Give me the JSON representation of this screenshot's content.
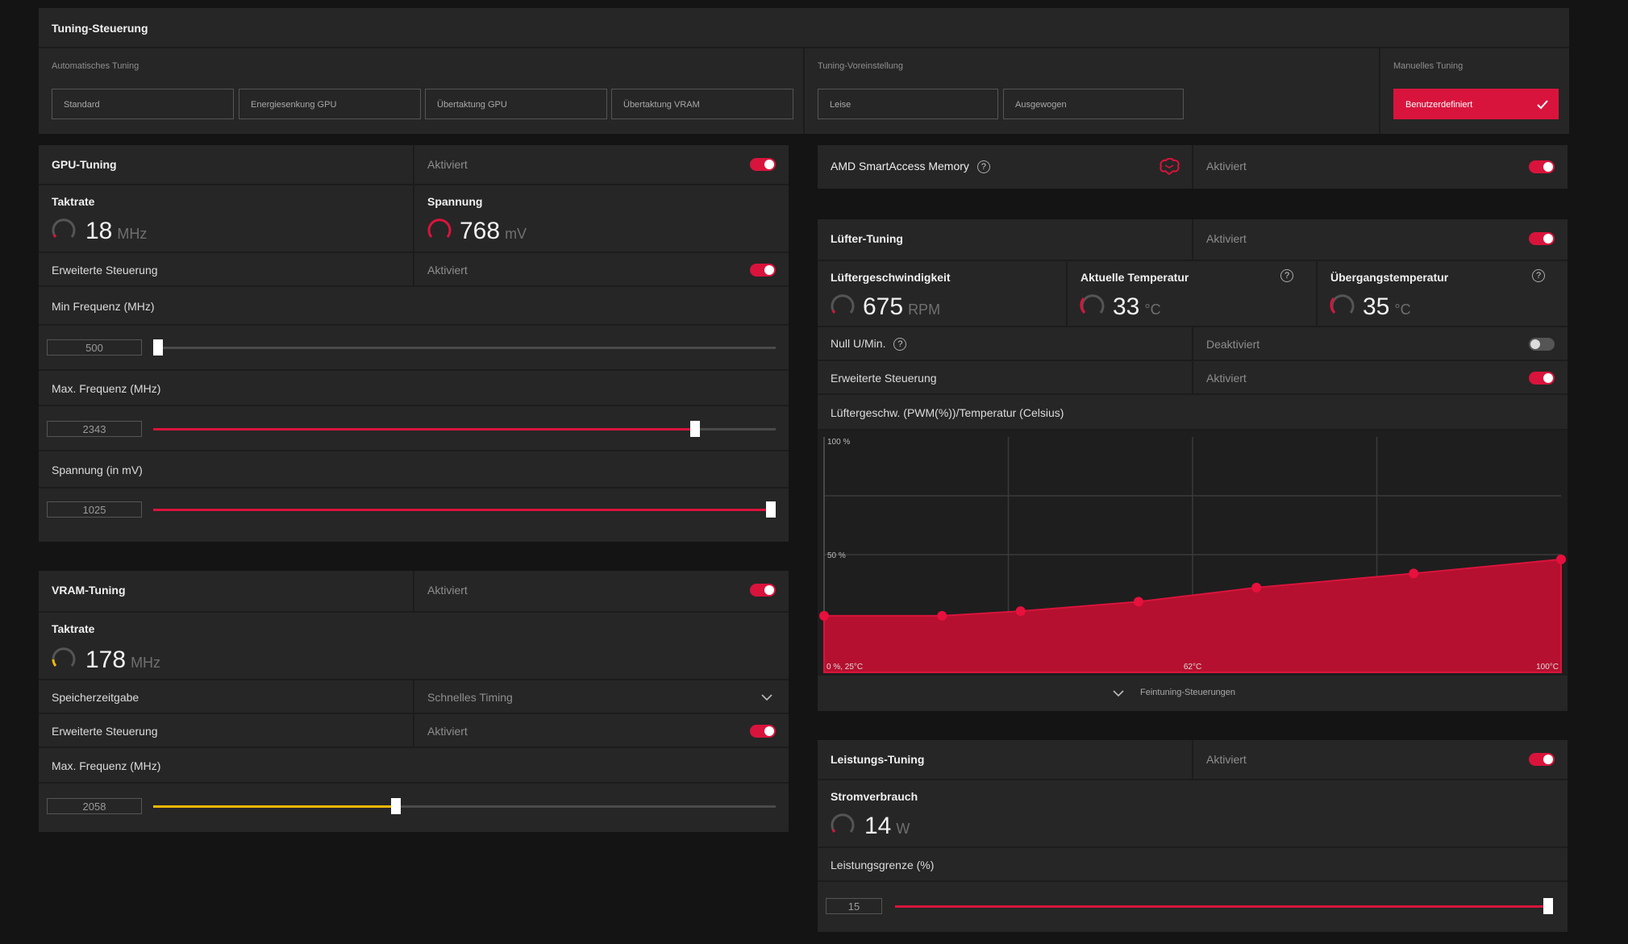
{
  "tuning_control": {
    "title": "Tuning-Steuerung",
    "auto_label": "Automatisches Tuning",
    "auto_buttons": [
      "Standard",
      "Energiesenkung GPU",
      "Übertaktung GPU",
      "Übertaktung VRAM"
    ],
    "preset_label": "Tuning-Voreinstellung",
    "preset_buttons": [
      "Leise",
      "Ausgewogen"
    ],
    "manual_label": "Manuelles Tuning",
    "manual_button": "Benutzerdefiniert"
  },
  "gpu_tuning": {
    "title": "GPU-Tuning",
    "status": "Aktiviert",
    "clock_label": "Taktrate",
    "clock_value": "18",
    "clock_unit": "MHz",
    "voltage_label": "Spannung",
    "voltage_value": "768",
    "voltage_unit": "mV",
    "advanced_label": "Erweiterte Steuerung",
    "advanced_status": "Aktiviert",
    "min_freq_label": "Min Frequenz (MHz)",
    "min_freq_value": "500",
    "min_freq_fraction": 0.0,
    "max_freq_label": "Max. Frequenz (MHz)",
    "max_freq_value": "2343",
    "max_freq_fraction": 0.87,
    "voltage_slider_label": "Spannung (in mV)",
    "voltage_slider_value": "1025",
    "voltage_slider_fraction": 1.0
  },
  "vram_tuning": {
    "title": "VRAM-Tuning",
    "status": "Aktiviert",
    "clock_label": "Taktrate",
    "clock_value": "178",
    "clock_unit": "MHz",
    "timing_label": "Speicherzeitgabe",
    "timing_value": "Schnelles Timing",
    "advanced_label": "Erweiterte Steuerung",
    "advanced_status": "Aktiviert",
    "max_freq_label": "Max. Frequenz (MHz)",
    "max_freq_value": "2058",
    "max_freq_fraction": 0.39
  },
  "sam": {
    "title": "AMD SmartAccess Memory",
    "status": "Aktiviert"
  },
  "fan_tuning": {
    "title": "Lüfter-Tuning",
    "status": "Aktiviert",
    "speed_label": "Lüftergeschwindigkeit",
    "speed_value": "675",
    "speed_unit": "RPM",
    "temp_label": "Aktuelle Temperatur",
    "temp_value": "33",
    "temp_unit": "°C",
    "junction_label": "Übergangstemperatur",
    "junction_value": "35",
    "junction_unit": "°C",
    "zero_rpm_label": "Null U/Min.",
    "zero_rpm_status": "Deaktiviert",
    "advanced_label": "Erweiterte Steuerung",
    "advanced_status": "Aktiviert",
    "curve_label": "Lüftergeschw. (PWM(%))/Temperatur (Celsius)",
    "fine_tuning_label": "Feintuning-Steuerungen"
  },
  "power_tuning": {
    "title": "Leistungs-Tuning",
    "status": "Aktiviert",
    "consumption_label": "Stromverbrauch",
    "consumption_value": "14",
    "consumption_unit": "W",
    "limit_label": "Leistungsgrenze (%)",
    "limit_value": "15",
    "limit_fraction": 1.0
  },
  "colors": {
    "accent": "#d9143c",
    "vram_accent": "#f2b705"
  },
  "chart_data": {
    "type": "area",
    "xlabel": "",
    "ylabel": "",
    "x": [
      25,
      37,
      45,
      57,
      69,
      85,
      100
    ],
    "x_unit": "°C",
    "y": [
      24,
      24,
      26,
      30,
      36,
      42,
      48
    ],
    "y_unit": "%",
    "xlim": [
      25,
      100
    ],
    "ylim": [
      0,
      100
    ],
    "y_ticks": [
      "100 %",
      "50 %"
    ],
    "x_ticks": [
      "0 %, 25°C",
      "62°C",
      "100°C"
    ],
    "grid": true
  }
}
